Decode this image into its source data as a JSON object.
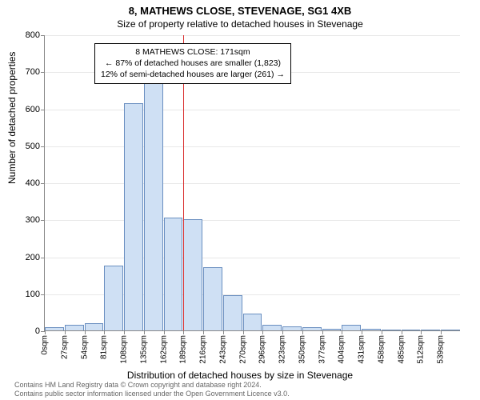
{
  "title_main": "8, MATHEWS CLOSE, STEVENAGE, SG1 4XB",
  "title_sub": "Size of property relative to detached houses in Stevenage",
  "chart": {
    "type": "histogram",
    "y_max": 800,
    "y_tick_step": 100,
    "y_ticks": [
      0,
      100,
      200,
      300,
      400,
      500,
      600,
      700,
      800
    ],
    "x_labels": [
      "0sqm",
      "27sqm",
      "54sqm",
      "81sqm",
      "108sqm",
      "135sqm",
      "162sqm",
      "189sqm",
      "216sqm",
      "243sqm",
      "270sqm",
      "296sqm",
      "323sqm",
      "350sqm",
      "377sqm",
      "404sqm",
      "431sqm",
      "458sqm",
      "485sqm",
      "512sqm",
      "539sqm"
    ],
    "bars": [
      8,
      15,
      20,
      175,
      615,
      670,
      305,
      300,
      170,
      95,
      45,
      15,
      10,
      8,
      5,
      15,
      4,
      3,
      2,
      2,
      2
    ],
    "bar_fill": "#cfe0f4",
    "bar_stroke": "#6a8fc0",
    "grid_color": "#e8e8e8",
    "axis_color": "#888888",
    "background": "#ffffff",
    "marker_value_sqm": 171,
    "marker_color": "#d93030",
    "bars_left_of_marker": 7
  },
  "callout": {
    "line1": "8 MATHEWS CLOSE: 171sqm",
    "line2": "← 87% of detached houses are smaller (1,823)",
    "line3": "12% of semi-detached houses are larger (261) →"
  },
  "y_axis_label": "Number of detached properties",
  "x_axis_label": "Distribution of detached houses by size in Stevenage",
  "footer1": "Contains HM Land Registry data © Crown copyright and database right 2024.",
  "footer2": "Contains public sector information licensed under the Open Government Licence v3.0."
}
